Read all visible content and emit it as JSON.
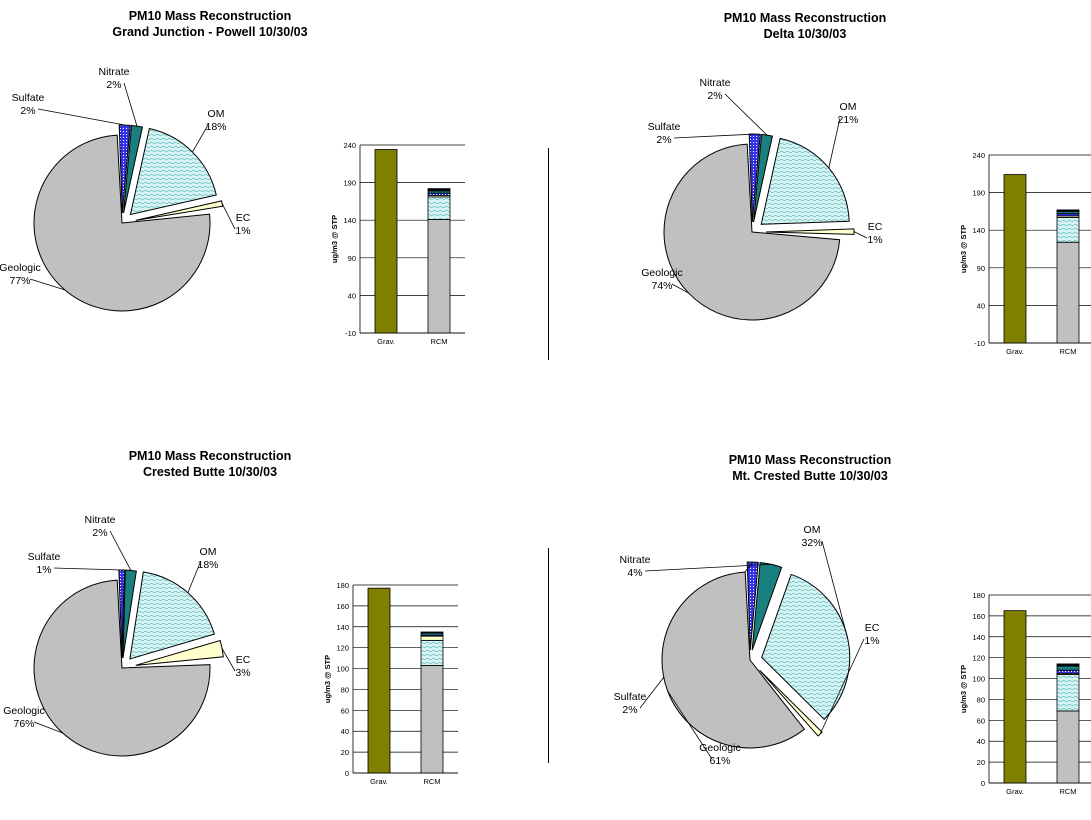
{
  "colors": {
    "geologic": "#c0c0c0",
    "sulfate": "#3333ee",
    "nitrate": "#1a7f7f",
    "om": "#d6f4f4",
    "ec": "#ffffcc",
    "grav": "#7f7f00",
    "other": "#000000"
  },
  "chart_data": [
    {
      "type": "pie",
      "title": "PM10 Mass Reconstruction",
      "subtitle": "Grand Junction - Powell  10/30/03",
      "slices": [
        {
          "label": "Sulfate",
          "value": 2,
          "text": "2%"
        },
        {
          "label": "Nitrate",
          "value": 2,
          "text": "2%"
        },
        {
          "label": "OM",
          "value": 18,
          "text": "18%"
        },
        {
          "label": "EC",
          "value": 1,
          "text": "1%"
        },
        {
          "label": "Geologic",
          "value": 77,
          "text": "77%"
        }
      ],
      "bar": {
        "type": "bar",
        "ylabel": "ug/m3 @ STP",
        "categories": [
          "Grav.",
          "RCM"
        ],
        "ylim": [
          -10,
          240
        ],
        "yticks": [
          -10,
          40,
          90,
          140,
          190,
          240
        ],
        "grav": 234,
        "rcm": [
          {
            "name": "Geologic",
            "value": 141
          },
          {
            "name": "OM",
            "value": 30
          },
          {
            "name": "EC",
            "value": 2
          },
          {
            "name": "Sulfate",
            "value": 3
          },
          {
            "name": "Nitrate",
            "value": 3
          },
          {
            "name": "Other",
            "value": 3
          }
        ]
      }
    },
    {
      "type": "pie",
      "title": "PM10 Mass Reconstruction",
      "subtitle": "Delta 10/30/03",
      "slices": [
        {
          "label": "Sulfate",
          "value": 2,
          "text": "2%"
        },
        {
          "label": "Nitrate",
          "value": 2,
          "text": "2%"
        },
        {
          "label": "OM",
          "value": 21,
          "text": "21%"
        },
        {
          "label": "EC",
          "value": 1,
          "text": "1%"
        },
        {
          "label": "Geologic",
          "value": 74,
          "text": "74%"
        }
      ],
      "bar": {
        "type": "bar",
        "ylabel": "ug/m3 @ STP",
        "categories": [
          "Grav.",
          "RCM"
        ],
        "ylim": [
          -10,
          240
        ],
        "yticks": [
          -10,
          40,
          90,
          140,
          190,
          240
        ],
        "grav": 214,
        "rcm": [
          {
            "name": "Geologic",
            "value": 124
          },
          {
            "name": "OM",
            "value": 33
          },
          {
            "name": "EC",
            "value": 2
          },
          {
            "name": "Sulfate",
            "value": 3
          },
          {
            "name": "Nitrate",
            "value": 3
          },
          {
            "name": "Other",
            "value": 2
          }
        ]
      }
    },
    {
      "type": "pie",
      "title": "PM10 Mass Reconstruction",
      "subtitle": "Crested Butte 10/30/03",
      "slices": [
        {
          "label": "Sulfate",
          "value": 1,
          "text": "1%"
        },
        {
          "label": "Nitrate",
          "value": 2,
          "text": "2%"
        },
        {
          "label": "OM",
          "value": 18,
          "text": "18%"
        },
        {
          "label": "EC",
          "value": 3,
          "text": "3%"
        },
        {
          "label": "Geologic",
          "value": 76,
          "text": "76%"
        }
      ],
      "bar": {
        "type": "bar",
        "ylabel": "ug/m3 @ STP",
        "categories": [
          "Grav.",
          "RCM"
        ],
        "ylim": [
          0,
          180
        ],
        "yticks": [
          0,
          20,
          40,
          60,
          80,
          100,
          120,
          140,
          160,
          180
        ],
        "grav": 177,
        "rcm": [
          {
            "name": "Geologic",
            "value": 103
          },
          {
            "name": "OM",
            "value": 24
          },
          {
            "name": "EC",
            "value": 4
          },
          {
            "name": "Sulfate",
            "value": 1
          },
          {
            "name": "Nitrate",
            "value": 2
          },
          {
            "name": "Other",
            "value": 1
          }
        ]
      }
    },
    {
      "type": "pie",
      "title": "PM10 Mass Reconstruction",
      "subtitle": "Mt. Crested Butte 10/30/03",
      "slices": [
        {
          "label": "Sulfate",
          "value": 2,
          "text": "2%"
        },
        {
          "label": "Nitrate",
          "value": 4,
          "text": "4%"
        },
        {
          "label": "OM",
          "value": 32,
          "text": "32%"
        },
        {
          "label": "EC",
          "value": 1,
          "text": "1%"
        },
        {
          "label": "Geologic",
          "value": 61,
          "text": "61%"
        }
      ],
      "bar": {
        "type": "bar",
        "ylabel": "ug/m3 @ STP",
        "categories": [
          "Grav.",
          "RCM"
        ],
        "ylim": [
          0,
          180
        ],
        "yticks": [
          0,
          20,
          40,
          60,
          80,
          100,
          120,
          140,
          160,
          180
        ],
        "grav": 165,
        "rcm": [
          {
            "name": "Geologic",
            "value": 69
          },
          {
            "name": "OM",
            "value": 35
          },
          {
            "name": "EC",
            "value": 1
          },
          {
            "name": "Sulfate",
            "value": 3
          },
          {
            "name": "Nitrate",
            "value": 4
          },
          {
            "name": "Other",
            "value": 2
          }
        ]
      }
    }
  ]
}
